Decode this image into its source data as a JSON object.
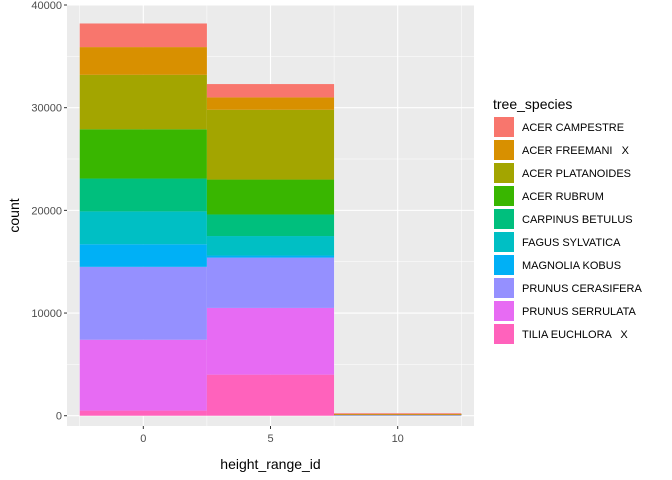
{
  "chart_data": {
    "type": "bar",
    "stacked": true,
    "title": "",
    "xlabel": "height_range_id",
    "ylabel": "count",
    "legend_title": "tree_species",
    "legend_position": "right",
    "grid": true,
    "xlim": [
      -3,
      13
    ],
    "ylim": [
      -1000,
      40000
    ],
    "x_ticks": [
      0,
      5,
      10
    ],
    "y_ticks": [
      0,
      10000,
      20000,
      30000,
      40000
    ],
    "bin_width": 5,
    "x": [
      0,
      5,
      10
    ],
    "series": [
      {
        "name": "ACER CAMPESTRE",
        "color": "#F8766D",
        "values": [
          2300,
          1300,
          40
        ]
      },
      {
        "name": "ACER FREEMANI   X",
        "color": "#D89000",
        "values": [
          2700,
          1200,
          40
        ]
      },
      {
        "name": "ACER PLATANOIDES",
        "color": "#A3A500",
        "values": [
          5300,
          6800,
          20
        ]
      },
      {
        "name": "ACER RUBRUM",
        "color": "#39B600",
        "values": [
          4800,
          3400,
          10
        ]
      },
      {
        "name": "CARPINUS BETULUS",
        "color": "#00BF7D",
        "values": [
          3200,
          2100,
          10
        ]
      },
      {
        "name": "FAGUS SYLVATICA",
        "color": "#00BFC4",
        "values": [
          3200,
          1900,
          10
        ]
      },
      {
        "name": "MAGNOLIA KOBUS",
        "color": "#00B0F6",
        "values": [
          2200,
          200,
          0
        ]
      },
      {
        "name": "PRUNUS CERASIFERA",
        "color": "#9590FF",
        "values": [
          7100,
          4900,
          10
        ]
      },
      {
        "name": "PRUNUS SERRULATA",
        "color": "#E76BF3",
        "values": [
          6900,
          6500,
          10
        ]
      },
      {
        "name": "TILIA EUCHLORA   X",
        "color": "#FF62BC",
        "values": [
          500,
          4000,
          30
        ]
      }
    ]
  }
}
